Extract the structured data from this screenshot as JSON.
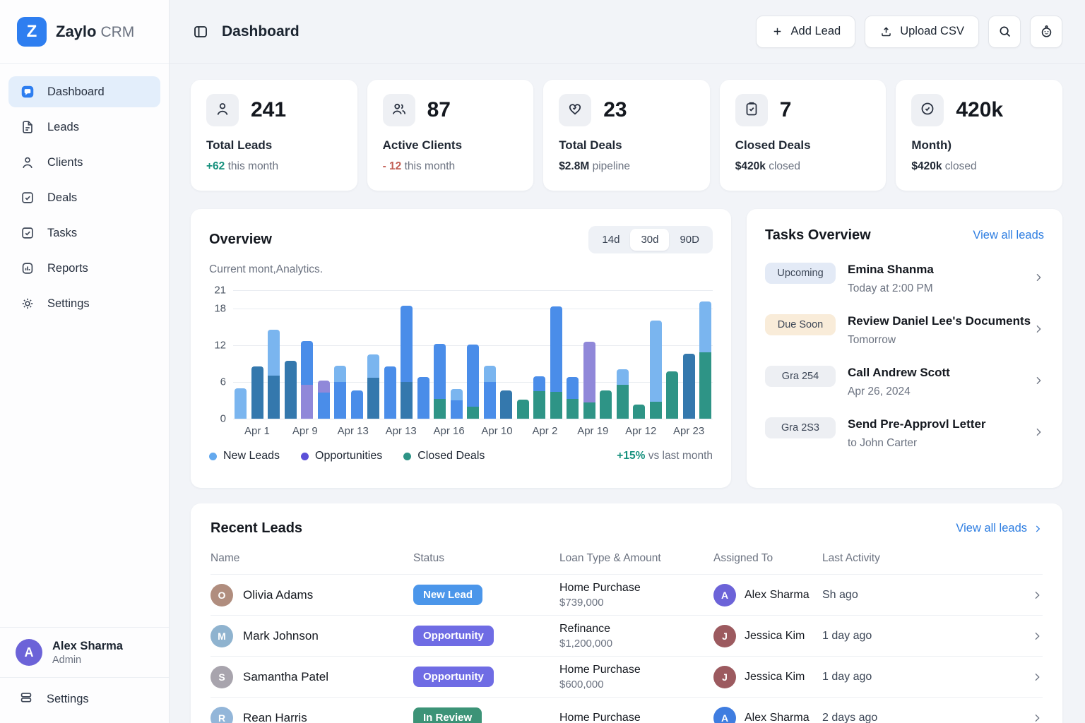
{
  "brand": {
    "logo_letter": "Z",
    "name": "Zaylo",
    "suffix": "CRM"
  },
  "sidebar": {
    "items": [
      {
        "label": "Dashboard",
        "icon": "dashboard-icon",
        "active": true
      },
      {
        "label": "Leads",
        "icon": "leads-icon",
        "active": false
      },
      {
        "label": "Clients",
        "icon": "clients-icon",
        "active": false
      },
      {
        "label": "Deals",
        "icon": "deals-icon",
        "active": false
      },
      {
        "label": "Tasks",
        "icon": "tasks-icon",
        "active": false
      },
      {
        "label": "Reports",
        "icon": "reports-icon",
        "active": false
      },
      {
        "label": "Settings",
        "icon": "settings-icon",
        "active": false
      }
    ],
    "user": {
      "name": "Alex Sharma",
      "role": "Admin",
      "initial": "A",
      "avatar_color": "#6c63d8"
    },
    "footer_item": {
      "label": "Settings"
    }
  },
  "header": {
    "title": "Dashboard",
    "add_lead_label": "Add Lead",
    "upload_csv_label": "Upload CSV"
  },
  "stats": [
    {
      "icon": "person-icon",
      "value": "241",
      "label": "Total Leads",
      "sub_value": "+62",
      "sub_text": "this month",
      "sub_color": "#17917e"
    },
    {
      "icon": "people-icon",
      "value": "87",
      "label": "Active Clients",
      "sub_value": "- 12",
      "sub_text": "this month",
      "sub_color": "#c25e54"
    },
    {
      "icon": "heart-icon",
      "value": "23",
      "label": "Total Deals",
      "sub_value": "$2.8M",
      "sub_text": "pipeline",
      "sub_color": "#1f2733"
    },
    {
      "icon": "clipboard-icon",
      "value": "7",
      "label": "Closed Deals",
      "sub_value": "$420k",
      "sub_text": "closed",
      "sub_color": "#1f2733"
    },
    {
      "icon": "clock-icon",
      "value": "420k",
      "label": "Month)",
      "sub_value": "$420k",
      "sub_text": "closed",
      "sub_color": "#1f2733"
    }
  ],
  "overview": {
    "title": "Overview",
    "subtitle": "Current mont,Analytics.",
    "ranges": [
      "14d",
      "30d",
      "90D"
    ],
    "selected_range": "30d"
  },
  "chart_data": {
    "type": "bar",
    "stacked": true,
    "title": "Overview",
    "xlabel": "",
    "ylabel": "",
    "ylim": [
      0,
      21
    ],
    "y_ticks": [
      21,
      18,
      12,
      6,
      0
    ],
    "grid": true,
    "x_labels": [
      "Apr 1",
      "Apr 9",
      "Apr 13",
      "Apr 13",
      "Apr 16",
      "Apr 10",
      "Apr 2",
      "Apr 19",
      "Apr 12",
      "Apr 23"
    ],
    "palette": {
      "lightblue": "#7ab5ef",
      "blue": "#4a8de9",
      "steelblue": "#3478ad",
      "purple": "#9088d9",
      "teal": "#2e9486"
    },
    "bars": [
      {
        "segments": [
          [
            "lightblue",
            5.0
          ]
        ]
      },
      {
        "segments": [
          [
            "steelblue",
            8.5
          ]
        ]
      },
      {
        "segments": [
          [
            "steelblue",
            7.0
          ],
          [
            "lightblue",
            7.5
          ]
        ]
      },
      {
        "segments": [
          [
            "steelblue",
            9.5
          ]
        ]
      },
      {
        "segments": [
          [
            "purple",
            5.5
          ],
          [
            "blue",
            7.2
          ]
        ]
      },
      {
        "segments": [
          [
            "blue",
            4.3
          ],
          [
            "purple",
            1.9
          ]
        ]
      },
      {
        "segments": [
          [
            "blue",
            6.0
          ],
          [
            "lightblue",
            2.6
          ]
        ]
      },
      {
        "segments": [
          [
            "blue",
            4.6
          ]
        ]
      },
      {
        "segments": [
          [
            "steelblue",
            6.7
          ],
          [
            "lightblue",
            3.8
          ]
        ]
      },
      {
        "segments": [
          [
            "blue",
            8.5
          ]
        ]
      },
      {
        "segments": [
          [
            "steelblue",
            6.0
          ],
          [
            "blue",
            12.5
          ]
        ]
      },
      {
        "segments": [
          [
            "blue",
            6.8
          ]
        ]
      },
      {
        "segments": [
          [
            "teal",
            3.2
          ],
          [
            "blue",
            9.0
          ]
        ]
      },
      {
        "segments": [
          [
            "blue",
            3.0
          ],
          [
            "lightblue",
            1.8
          ]
        ]
      },
      {
        "segments": [
          [
            "teal",
            2.0
          ],
          [
            "blue",
            10.1
          ]
        ]
      },
      {
        "segments": [
          [
            "blue",
            6.0
          ],
          [
            "lightblue",
            2.7
          ]
        ]
      },
      {
        "segments": [
          [
            "steelblue",
            4.6
          ]
        ]
      },
      {
        "segments": [
          [
            "teal",
            3.1
          ]
        ]
      },
      {
        "segments": [
          [
            "teal",
            4.5
          ],
          [
            "blue",
            2.4
          ]
        ]
      },
      {
        "segments": [
          [
            "teal",
            4.4
          ],
          [
            "blue",
            14.0
          ]
        ]
      },
      {
        "segments": [
          [
            "teal",
            3.2
          ],
          [
            "blue",
            3.6
          ]
        ]
      },
      {
        "segments": [
          [
            "teal",
            2.6
          ],
          [
            "purple",
            10.0
          ]
        ]
      },
      {
        "segments": [
          [
            "teal",
            4.6
          ]
        ]
      },
      {
        "segments": [
          [
            "teal",
            5.5
          ],
          [
            "lightblue",
            2.6
          ]
        ]
      },
      {
        "segments": [
          [
            "teal",
            2.3
          ]
        ]
      },
      {
        "segments": [
          [
            "teal",
            2.8
          ],
          [
            "lightblue",
            13.2
          ]
        ]
      },
      {
        "segments": [
          [
            "teal",
            7.7
          ]
        ]
      },
      {
        "segments": [
          [
            "steelblue",
            10.6
          ]
        ]
      },
      {
        "segments": [
          [
            "teal",
            10.9
          ],
          [
            "lightblue",
            8.2
          ]
        ]
      }
    ],
    "legend": [
      {
        "label": "New Leads",
        "color": "#64a9ee"
      },
      {
        "label": "Opportunities",
        "color": "#5b50d8"
      },
      {
        "label": "Closed Deals",
        "color": "#2e9486"
      }
    ],
    "legend_position": "bottom",
    "trend": {
      "value": "+15%",
      "label": "vs last month"
    }
  },
  "tasks": {
    "title": "Tasks Overview",
    "link_label": "View all leads",
    "items": [
      {
        "badge": "Upcoming",
        "badge_bg": "#e3eaf6",
        "title": "Emina Shanma",
        "subtitle": "Today at 2:00 PM"
      },
      {
        "badge": "Due Soon",
        "badge_bg": "#f9ecd9",
        "title": "Review Daniel Lee's Documents",
        "subtitle": "Tomorrow"
      },
      {
        "badge": "Gra 254",
        "badge_bg": "#edeff3",
        "title": "Call Andrew Scott",
        "subtitle": "Apr 26, 2024"
      },
      {
        "badge": "Gra 2S3",
        "badge_bg": "#edeff3",
        "title": "Send Pre-Approvl Letter",
        "subtitle": "to John Carter"
      }
    ]
  },
  "recent_leads": {
    "title": "Recent Leads",
    "link_label": "View all leads",
    "columns": [
      "Name",
      "Status",
      "Loan Type & Amount",
      "Assigned To",
      "Last Activity"
    ],
    "rows": [
      {
        "name": "Olivia Adams",
        "initial": "O",
        "avatar_color": "#b08d7e",
        "status": "New Lead",
        "status_bg": "#4b96ea",
        "loan": "Home Purchase",
        "amount": "$739,000",
        "assignee": "Alex Sharma",
        "assignee_initial": "A",
        "assignee_color": "#6c63d8",
        "activity": "Sh ago"
      },
      {
        "name": "Mark Johnson",
        "initial": "M",
        "avatar_color": "#8fb3cf",
        "status": "Opportunity",
        "status_bg": "#6f6ce4",
        "loan": "Refinance",
        "amount": "$1,200,000",
        "assignee": "Jessica Kim",
        "assignee_initial": "J",
        "assignee_color": "#9c5a5f",
        "activity": "1 day ago"
      },
      {
        "name": "Samantha Patel",
        "initial": "S",
        "avatar_color": "#a8a4ad",
        "status": "Opportunity",
        "status_bg": "#6f6ce4",
        "loan": "Home Purchase",
        "amount": "$600,000",
        "assignee": "Jessica Kim",
        "assignee_initial": "J",
        "assignee_color": "#9c5a5f",
        "activity": "1 day ago"
      },
      {
        "name": "Rean Harris",
        "initial": "R",
        "avatar_color": "#93b6d9",
        "status": "In Review",
        "status_bg": "#3c9377",
        "loan": "Home Purchase",
        "amount": "",
        "assignee": "Alex Sharma",
        "assignee_initial": "A",
        "assignee_color": "#3f7de0",
        "activity": "2 days ago"
      }
    ]
  }
}
